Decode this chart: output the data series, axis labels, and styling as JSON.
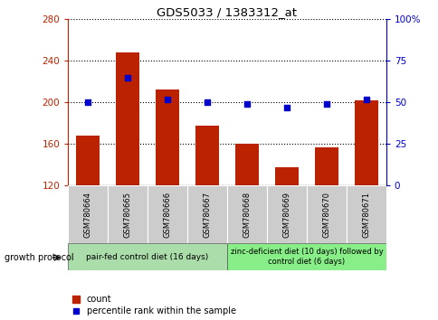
{
  "title": "GDS5033 / 1383312_at",
  "samples": [
    "GSM780664",
    "GSM780665",
    "GSM780666",
    "GSM780667",
    "GSM780668",
    "GSM780669",
    "GSM780670",
    "GSM780671"
  ],
  "count_values": [
    168,
    248,
    212,
    178,
    160,
    138,
    157,
    202
  ],
  "percentile_values": [
    50,
    65,
    52,
    50,
    49,
    47,
    49,
    52
  ],
  "ylim_left": [
    120,
    280
  ],
  "ylim_right": [
    0,
    100
  ],
  "yticks_left": [
    120,
    160,
    200,
    240,
    280
  ],
  "yticks_right": [
    0,
    25,
    50,
    75,
    100
  ],
  "ytick_labels_right": [
    "0",
    "25",
    "50",
    "75",
    "100%"
  ],
  "bar_color": "#BB2200",
  "dot_color": "#0000CC",
  "bg_color": "#FFFFFF",
  "plot_bg": "#FFFFFF",
  "group1_label": "pair-fed control diet (16 days)",
  "group2_label": "zinc-deficient diet (10 days) followed by\ncontrol diet (6 days)",
  "growth_protocol_label": "growth protocol",
  "legend_count_label": "count",
  "legend_percentile_label": "percentile rank within the sample",
  "group1_color": "#AADDAA",
  "group2_color": "#88EE88",
  "sample_bg_color": "#CCCCCC",
  "figwidth": 4.85,
  "figheight": 3.54,
  "dpi": 100
}
